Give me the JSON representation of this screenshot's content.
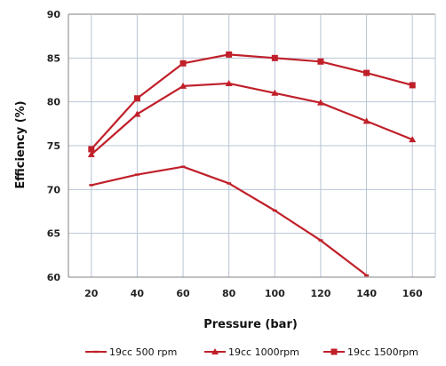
{
  "chart_data": {
    "type": "line",
    "xlabel": "Pressure (bar)",
    "ylabel": "Efficiency (%)",
    "x": [
      20,
      40,
      60,
      80,
      100,
      120,
      140,
      160
    ],
    "xticks": [
      "20",
      "40",
      "60",
      "80",
      "100",
      "120",
      "140",
      "160"
    ],
    "yticks": [
      "60",
      "65",
      "70",
      "75",
      "80",
      "85",
      "90"
    ],
    "ylim": [
      60,
      90
    ],
    "xlim": [
      10,
      170
    ],
    "grid": true,
    "legend_position": "bottom",
    "series": [
      {
        "name": "19cc 500 rpm",
        "marker": "none",
        "color": "#c0202a",
        "values": [
          70.5,
          71.7,
          72.6,
          70.7,
          67.6,
          64.2,
          60.2,
          null
        ]
      },
      {
        "name": "19cc 1000rpm",
        "marker": "triangle",
        "color": "#c0202a",
        "values": [
          74.0,
          78.6,
          81.8,
          82.1,
          81.0,
          79.9,
          77.8,
          75.7
        ]
      },
      {
        "name": "19cc 1500rpm",
        "marker": "square",
        "color": "#c0202a",
        "values": [
          74.6,
          80.4,
          84.4,
          85.4,
          85.0,
          84.6,
          83.3,
          81.9
        ]
      }
    ]
  }
}
